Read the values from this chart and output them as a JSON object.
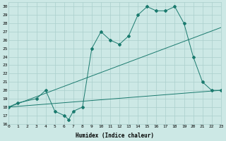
{
  "title": "",
  "xlabel": "Humidex (Indice chaleur)",
  "bg_color": "#cce8e5",
  "grid_color": "#aacfcc",
  "line_color": "#1a7a6e",
  "xlim": [
    0,
    23
  ],
  "ylim": [
    16,
    30.5
  ],
  "xticks": [
    0,
    1,
    2,
    3,
    4,
    5,
    6,
    7,
    8,
    9,
    10,
    11,
    12,
    13,
    14,
    15,
    16,
    17,
    18,
    19,
    20,
    21,
    22,
    23
  ],
  "yticks": [
    16,
    17,
    18,
    19,
    20,
    21,
    22,
    23,
    24,
    25,
    26,
    27,
    28,
    29,
    30
  ],
  "line1_x": [
    0,
    1,
    3,
    4,
    5,
    6,
    6.5,
    7,
    8,
    9,
    10,
    11,
    12,
    13,
    14,
    15,
    16,
    17,
    18,
    19,
    20,
    21,
    22,
    23
  ],
  "line1_y": [
    18,
    18.5,
    19,
    20,
    17.5,
    17,
    16.5,
    17.5,
    18,
    25,
    27,
    26,
    25.5,
    26.5,
    29,
    30,
    29.5,
    29.5,
    30,
    28,
    24,
    21,
    20,
    20
  ],
  "line2_x": [
    0,
    23
  ],
  "line2_y": [
    18,
    27.5
  ],
  "line3_x": [
    0,
    23
  ],
  "line3_y": [
    18,
    20
  ],
  "markersize": 2.0,
  "linewidth": 0.7
}
